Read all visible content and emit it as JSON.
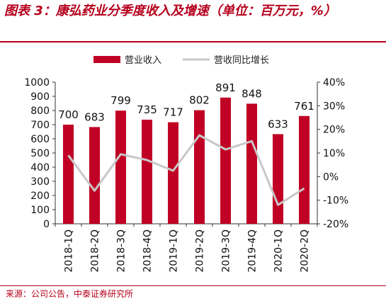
{
  "figure": {
    "title": "图表 3：康弘药业分季度收入及增速（单位：百万元，%）",
    "source": "来源：公司公告，中泰证券研究所"
  },
  "colors": {
    "accent": "#b5001c",
    "bar": "#c00024",
    "line": "#c8c8c8"
  },
  "chart_data": {
    "type": "bar",
    "categories": [
      "2018-1Q",
      "2018-2Q",
      "2018-3Q",
      "2018-4Q",
      "2019-1Q",
      "2019-2Q",
      "2019-3Q",
      "2019-4Q",
      "2020-1Q",
      "2020-2Q"
    ],
    "series": [
      {
        "name": "营业收入",
        "type": "bar",
        "axis": "left",
        "values": [
          700,
          683,
          799,
          735,
          717,
          802,
          891,
          848,
          633,
          761
        ]
      },
      {
        "name": "营收同比增长",
        "type": "line",
        "axis": "right",
        "values": [
          9,
          -6,
          9.5,
          7,
          2.5,
          17.5,
          11.5,
          15,
          -12,
          -5
        ]
      }
    ],
    "y_left": {
      "ylim": [
        0,
        1000
      ],
      "ticks": [
        0,
        100,
        200,
        300,
        400,
        500,
        600,
        700,
        800,
        900,
        1000
      ]
    },
    "y_right": {
      "ylim": [
        -20,
        40
      ],
      "ticks": [
        "-20%",
        "-10%",
        "0%",
        "10%",
        "20%",
        "30%",
        "40%"
      ]
    },
    "grid": false,
    "legend_position": "top-center",
    "data_labels": true
  }
}
